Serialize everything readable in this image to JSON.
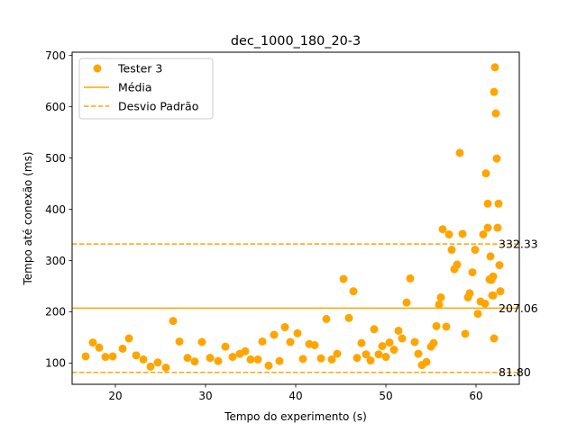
{
  "chart_data": {
    "type": "scatter",
    "title": "dec_1000_180_20-3",
    "xlabel": "Tempo do experimento (s)",
    "ylabel": "Tempo até conexão (ms)",
    "xlim": [
      15.2,
      64.8
    ],
    "ylim": [
      58.5,
      706.5
    ],
    "xticks": [
      20,
      30,
      40,
      50,
      60
    ],
    "yticks": [
      100,
      200,
      300,
      400,
      500,
      600,
      700
    ],
    "grid": false,
    "legend_position": "top-left",
    "legend": [
      "Tester 3",
      "Média",
      "Desvio Padrão"
    ],
    "colors": {
      "series": "#FFA500",
      "axis": "#000000",
      "background": "#FFFFFF"
    },
    "mean": {
      "value": 207.06,
      "label": "207.06"
    },
    "std_upper": {
      "value": 332.33,
      "label": "332.33"
    },
    "std_lower": {
      "value": 81.8,
      "label": "81.80"
    },
    "series": [
      {
        "name": "Tester 3",
        "points": [
          [
            16.7,
            113
          ],
          [
            17.5,
            140
          ],
          [
            18.2,
            130
          ],
          [
            18.9,
            112
          ],
          [
            19.7,
            113
          ],
          [
            20.8,
            128
          ],
          [
            21.5,
            148
          ],
          [
            22.3,
            115
          ],
          [
            23.1,
            107
          ],
          [
            23.9,
            93
          ],
          [
            24.7,
            101
          ],
          [
            25.6,
            91
          ],
          [
            26.4,
            182
          ],
          [
            27.1,
            142
          ],
          [
            28.0,
            110
          ],
          [
            28.8,
            103
          ],
          [
            29.6,
            141
          ],
          [
            30.5,
            110
          ],
          [
            31.4,
            104
          ],
          [
            32.2,
            132
          ],
          [
            33.0,
            112
          ],
          [
            33.8,
            118
          ],
          [
            34.4,
            123
          ],
          [
            35.0,
            107
          ],
          [
            35.8,
            107
          ],
          [
            36.3,
            142
          ],
          [
            37.0,
            95
          ],
          [
            37.6,
            155
          ],
          [
            38.2,
            104
          ],
          [
            38.8,
            170
          ],
          [
            39.4,
            141
          ],
          [
            40.2,
            158
          ],
          [
            40.8,
            108
          ],
          [
            41.5,
            137
          ],
          [
            42.1,
            135
          ],
          [
            42.8,
            109
          ],
          [
            43.4,
            186
          ],
          [
            44.0,
            107
          ],
          [
            44.6,
            118
          ],
          [
            45.3,
            264
          ],
          [
            45.9,
            188
          ],
          [
            46.4,
            240
          ],
          [
            46.8,
            110
          ],
          [
            47.3,
            139
          ],
          [
            47.8,
            117
          ],
          [
            48.3,
            105
          ],
          [
            48.7,
            166
          ],
          [
            49.2,
            117
          ],
          [
            49.6,
            133
          ],
          [
            50.0,
            112
          ],
          [
            50.4,
            140
          ],
          [
            50.9,
            126
          ],
          [
            51.4,
            163
          ],
          [
            51.8,
            148
          ],
          [
            52.3,
            218
          ],
          [
            52.7,
            265
          ],
          [
            53.2,
            141
          ],
          [
            53.6,
            118
          ],
          [
            54.0,
            96
          ],
          [
            54.5,
            102
          ],
          [
            55.0,
            132
          ],
          [
            55.3,
            139
          ],
          [
            55.6,
            172
          ],
          [
            55.9,
            214
          ],
          [
            56.1,
            228
          ],
          [
            56.3,
            361
          ],
          [
            56.7,
            171
          ],
          [
            57.0,
            351
          ],
          [
            57.3,
            321
          ],
          [
            57.6,
            283
          ],
          [
            57.9,
            292
          ],
          [
            58.2,
            510
          ],
          [
            58.5,
            352
          ],
          [
            58.8,
            157
          ],
          [
            59.1,
            228
          ],
          [
            59.3,
            236
          ],
          [
            59.6,
            277
          ],
          [
            59.9,
            321
          ],
          [
            60.2,
            196
          ],
          [
            60.5,
            220
          ],
          [
            60.8,
            351
          ],
          [
            61.0,
            216
          ],
          [
            61.1,
            470
          ],
          [
            61.3,
            411
          ],
          [
            61.3,
            364
          ],
          [
            61.5,
            263
          ],
          [
            61.6,
            308
          ],
          [
            61.7,
            262
          ],
          [
            61.8,
            232
          ],
          [
            61.9,
            269
          ],
          [
            62.0,
            148
          ],
          [
            62.0,
            629
          ],
          [
            62.1,
            677
          ],
          [
            62.2,
            587
          ],
          [
            62.3,
            499
          ],
          [
            62.4,
            364
          ],
          [
            62.5,
            411
          ],
          [
            62.6,
            291
          ],
          [
            62.7,
            240
          ],
          [
            61.9,
            232
          ]
        ]
      }
    ]
  }
}
